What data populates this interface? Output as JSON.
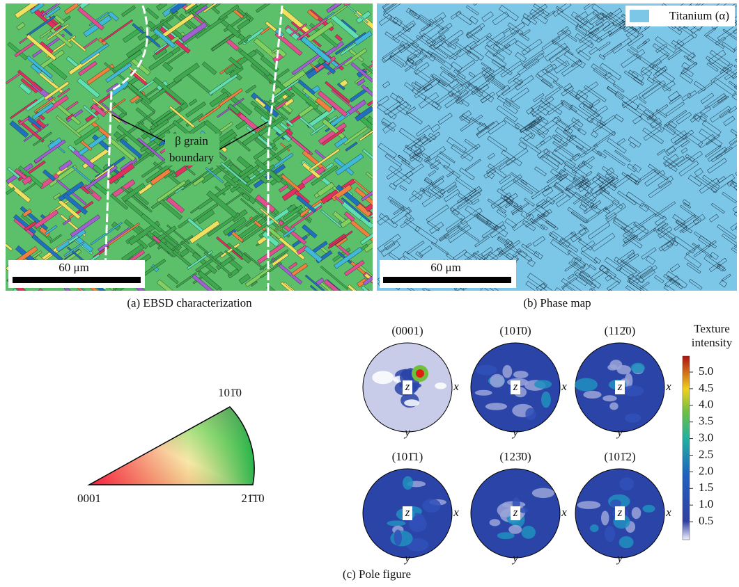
{
  "panel_a": {
    "annotation": [
      "β grain",
      "boundary"
    ],
    "scale_bar": "60 μm",
    "caption": "(a) EBSD characterization"
  },
  "panel_b": {
    "legend": "Titanium (α)",
    "scale_bar": "60 μm",
    "caption": "(b) Phase map"
  },
  "ipf": {
    "top": "101̄0",
    "left": "0001",
    "right": "21̄1̄0"
  },
  "pole_figures": [
    {
      "title": "(0001)",
      "axes": [
        "z",
        "x",
        "y"
      ]
    },
    {
      "title": "(101̄0)",
      "axes": [
        "z",
        "x",
        "y"
      ]
    },
    {
      "title": "(112̄0)",
      "axes": [
        "z",
        "x",
        "y"
      ]
    },
    {
      "title": "(101̄1)",
      "axes": [
        "z",
        "x",
        "y"
      ]
    },
    {
      "title": "(123̄0)",
      "axes": [
        "z",
        "x",
        "y"
      ]
    },
    {
      "title": "(101̄2)",
      "axes": [
        "z",
        "x",
        "y"
      ]
    }
  ],
  "colorbar": {
    "title": [
      "Texture",
      "intensity"
    ],
    "labels": [
      "5.0",
      "4.5",
      "4.0",
      "3.5",
      "3.0",
      "2.5",
      "2.0",
      "1.5",
      "1.0",
      "0.5"
    ]
  },
  "panel_c": {
    "caption": "(c) Pole figure"
  }
}
